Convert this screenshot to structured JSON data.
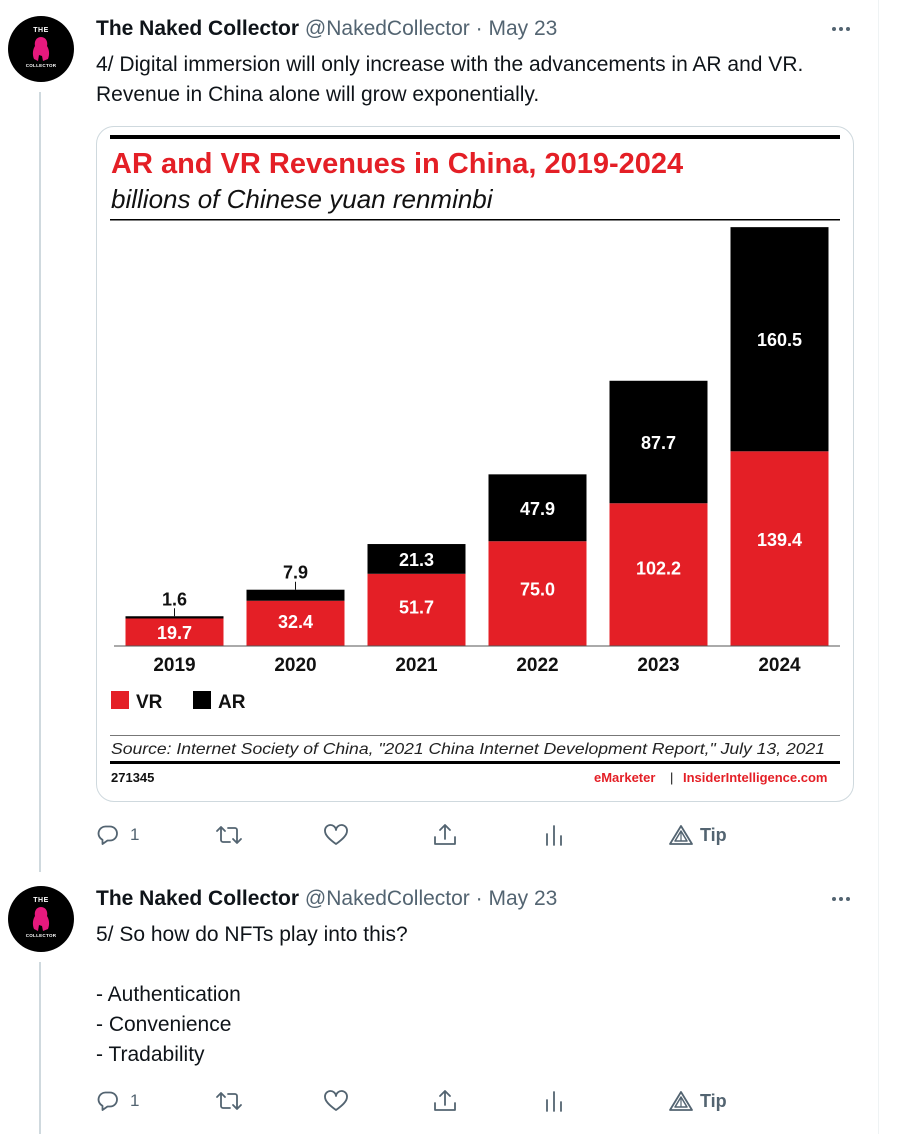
{
  "tweets": [
    {
      "avatar": {
        "top_text": "THE",
        "bottom_text": "COLLECTOR"
      },
      "name": "The Naked Collector",
      "handle": "@NakedCollector",
      "separator": "·",
      "date": "May 23",
      "text": "4/ Digital immersion will only increase with the advancements in AR and VR. Revenue in China alone will grow exponentially.",
      "actions": {
        "reply_count": "1",
        "tip_label": "Tip"
      }
    },
    {
      "avatar": {
        "top_text": "THE",
        "bottom_text": "COLLECTOR"
      },
      "name": "The Naked Collector",
      "handle": "@NakedCollector",
      "separator": "·",
      "date": "May 23",
      "text": "5/ So how do NFTs play into this?\n\n- Authentication\n- Convenience\n- Tradability",
      "actions": {
        "reply_count": "1",
        "tip_label": "Tip"
      }
    }
  ],
  "chart_data": {
    "type": "bar",
    "stacked": true,
    "title": "AR and VR Revenues in China, 2019-2024",
    "subtitle": "billions of Chinese yuan renminbi",
    "categories": [
      "2019",
      "2020",
      "2021",
      "2022",
      "2023",
      "2024"
    ],
    "series": [
      {
        "name": "VR",
        "color": "#e41f26",
        "values": [
          19.7,
          32.4,
          51.7,
          75.0,
          102.2,
          139.4
        ],
        "labels": [
          "19.7",
          "32.4",
          "51.7",
          "75.0",
          "102.2",
          "139.4"
        ]
      },
      {
        "name": "AR",
        "color": "#000000",
        "values": [
          1.6,
          7.9,
          21.3,
          47.9,
          87.7,
          160.5
        ],
        "labels": [
          "1.6",
          "7.9",
          "21.3",
          "47.9",
          "87.7",
          "160.5"
        ]
      }
    ],
    "ylim": [
      0,
      300
    ],
    "grid": false,
    "legend": "bottom-left",
    "source": "Source: Internet Society of China, \"2021 China Internet Development Report,\" July 13, 2021",
    "chart_id": "271345",
    "brand": "eMarketer",
    "brand_separator": "|",
    "brand_site": "InsiderIntelligence.com"
  },
  "colors": {
    "vr_red": "#e41f26",
    "ar_black": "#000000",
    "secondary_text": "#536471",
    "avatar_pink": "#e6197d"
  },
  "icons": [
    "more-icon",
    "reply-icon",
    "retweet-icon",
    "like-icon",
    "share-icon",
    "analytics-icon",
    "tip-icon"
  ]
}
